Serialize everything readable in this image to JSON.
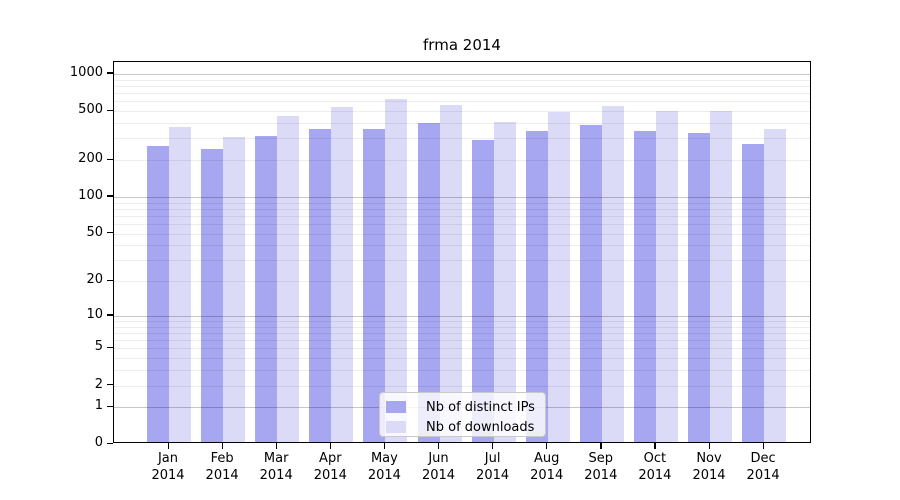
{
  "chart_data": {
    "type": "bar",
    "title": "frma 2014",
    "categories": [
      "Jan",
      "Feb",
      "Mar",
      "Apr",
      "May",
      "Jun",
      "Jul",
      "Aug",
      "Sep",
      "Oct",
      "Nov",
      "Dec"
    ],
    "category_year": "2014",
    "series": [
      {
        "name": "Nb of distinct IPs",
        "color": "#a6a6f1",
        "values": [
          250,
          235,
          305,
          345,
          345,
          385,
          280,
          330,
          370,
          335,
          320,
          260
        ]
      },
      {
        "name": "Nb of downloads",
        "color": "#dbdbf8",
        "values": [
          360,
          295,
          440,
          520,
          605,
          540,
          395,
          475,
          530,
          480,
          480,
          345
        ]
      }
    ],
    "xlabel": "",
    "ylabel": "",
    "yscale": "log10(value+1)",
    "yticks": [
      0,
      1,
      2,
      5,
      10,
      20,
      50,
      100,
      200,
      500,
      1000
    ],
    "ylim": [
      0,
      1250
    ],
    "grid": true,
    "legend_position": "lower center"
  },
  "colors": {
    "distinct_ips_bar": "#a6a6f1",
    "downloads_bar": "#dbdbf8",
    "major_gridline": "#c7c7c7",
    "minor_gridline": "#ededed",
    "axis": "#000000",
    "legend_border": "#c9c9c9"
  }
}
